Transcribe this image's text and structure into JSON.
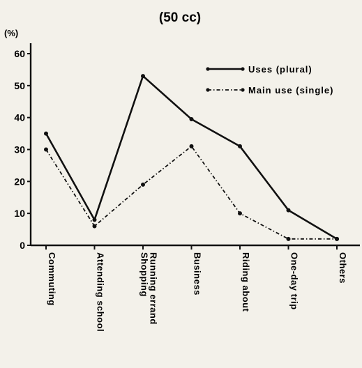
{
  "chart_data": {
    "type": "line",
    "title": "(50 cc)",
    "ylabel": "(%)",
    "xlabel": "",
    "ylim": [
      0,
      60
    ],
    "yticks": [
      0,
      10,
      20,
      30,
      40,
      50,
      60
    ],
    "grid": false,
    "legend_position": "top-right",
    "categories": [
      "Commuting",
      "Attending school",
      "Shopping Running errand",
      "Business",
      "Riding about",
      "One-day trip",
      "Others"
    ],
    "category_lines": [
      [
        "Commuting"
      ],
      [
        "Attending school"
      ],
      [
        "Shopping",
        "Running errand"
      ],
      [
        "Business"
      ],
      [
        "Riding about"
      ],
      [
        "One-day trip"
      ],
      [
        "Others"
      ]
    ],
    "series": [
      {
        "name": "Uses (plural)",
        "values": [
          35,
          8,
          53,
          39.5,
          31,
          11,
          2
        ],
        "style": "solid",
        "color": "#111111"
      },
      {
        "name": "Main use (single)",
        "values": [
          30,
          6,
          19,
          31,
          10,
          2,
          2
        ],
        "style": "dash-dot",
        "color": "#111111"
      }
    ]
  }
}
